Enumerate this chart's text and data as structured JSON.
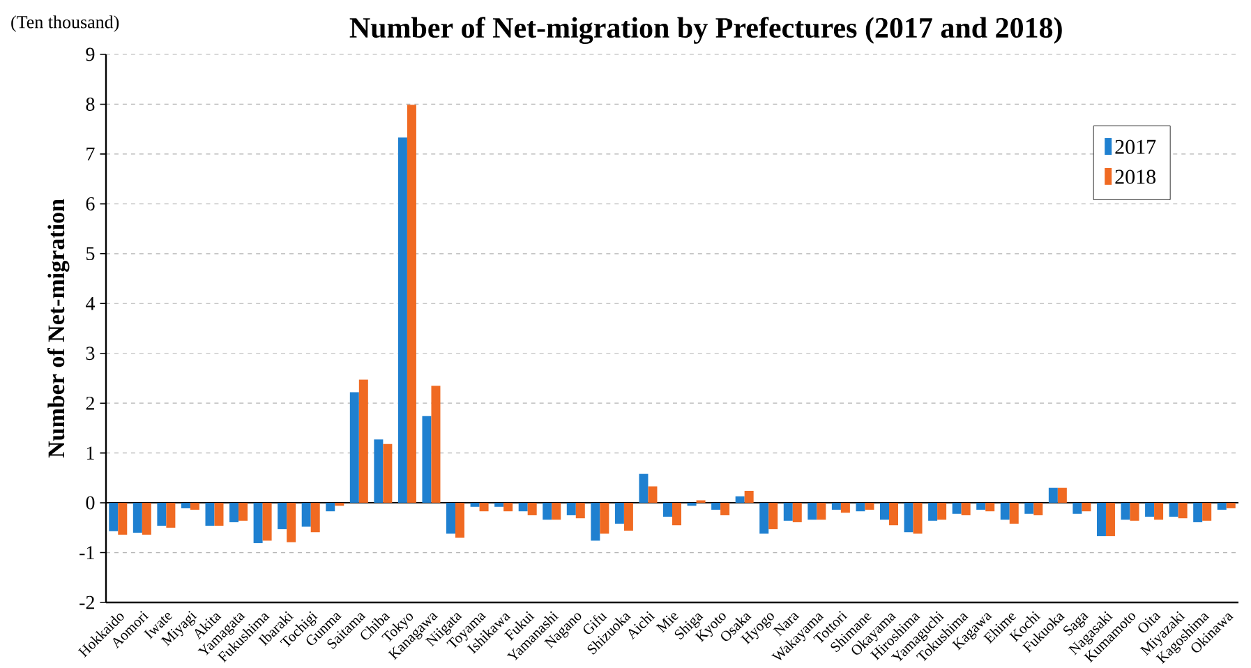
{
  "chart_data": {
    "type": "bar",
    "title": "Number of Net-migration by Prefectures (2017 and 2018)",
    "ylabel": "Number of  Net-migration",
    "annotations": [
      "(Ten thousand)"
    ],
    "categories": [
      "Hokkaido",
      "Aomori",
      "Iwate",
      "Miyagi",
      "Akita",
      "Yamagata",
      "Fukushima",
      "Ibaraki",
      "Tochigi",
      "Gunma",
      "Saitama",
      "Chiba",
      "Tokyo",
      "Kanagawa",
      "Niigata",
      "Toyama",
      "Ishikawa",
      "Fukui",
      "Yamanashi",
      "Nagano",
      "Gifu",
      "Shizuoka",
      "Aichi",
      "Mie",
      "Shiga",
      "Kyoto",
      "Osaka",
      "Hyogo",
      "Nara",
      "Wakayama",
      "Tottori",
      "Shimane",
      "Okayama",
      "Hiroshima",
      "Yamaguchi",
      "Tokushima",
      "Kagawa",
      "Ehime",
      "Kochi",
      "Fukuoka",
      "Saga",
      "Nagasaki",
      "Kumamoto",
      "Oita",
      "Miyazaki",
      "Kagoshima",
      "Okinawa"
    ],
    "series": [
      {
        "name": "2017",
        "color": "#1f80d0",
        "values": [
          -0.57,
          -0.6,
          -0.46,
          -0.11,
          -0.46,
          -0.39,
          -0.81,
          -0.53,
          -0.48,
          -0.17,
          2.22,
          1.27,
          7.33,
          1.74,
          -0.62,
          -0.08,
          -0.08,
          -0.17,
          -0.34,
          -0.25,
          -0.76,
          -0.42,
          0.58,
          -0.28,
          -0.06,
          -0.14,
          0.13,
          -0.62,
          -0.36,
          -0.34,
          -0.14,
          -0.17,
          -0.34,
          -0.59,
          -0.36,
          -0.22,
          -0.14,
          -0.34,
          -0.22,
          0.3,
          -0.22,
          -0.67,
          -0.34,
          -0.28,
          -0.28,
          -0.39,
          -0.14
        ]
      },
      {
        "name": "2018",
        "color": "#f06a22",
        "values": [
          -0.64,
          -0.64,
          -0.5,
          -0.14,
          -0.46,
          -0.36,
          -0.76,
          -0.79,
          -0.59,
          -0.06,
          2.47,
          1.18,
          7.99,
          2.35,
          -0.7,
          -0.17,
          -0.17,
          -0.25,
          -0.34,
          -0.31,
          -0.62,
          -0.56,
          0.33,
          -0.45,
          0.05,
          -0.25,
          0.24,
          -0.53,
          -0.39,
          -0.34,
          -0.2,
          -0.14,
          -0.45,
          -0.62,
          -0.34,
          -0.25,
          -0.17,
          -0.42,
          -0.25,
          0.3,
          -0.17,
          -0.67,
          -0.36,
          -0.34,
          -0.31,
          -0.36,
          -0.11
        ]
      }
    ],
    "ylim": [
      -2,
      9
    ],
    "yticks": [
      -2,
      -1,
      0,
      1,
      2,
      3,
      4,
      5,
      6,
      7,
      8,
      9
    ],
    "grid": "y",
    "legend": "top right"
  }
}
